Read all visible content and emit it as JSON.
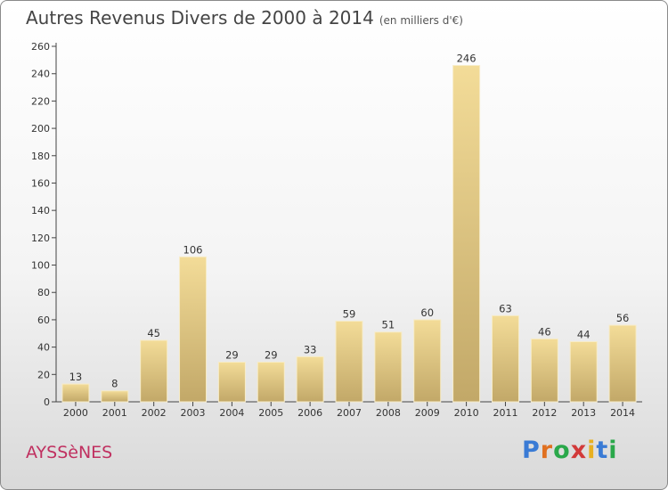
{
  "title": "Autres Revenus Divers de 2000 à 2014",
  "subtitle": "(en milliers d'€)",
  "commune": "AYSSèNES",
  "logo": {
    "text": "Proxiti",
    "letter_colors": [
      "#3a7bd5",
      "#e07020",
      "#2aa84a",
      "#d23a3a",
      "#e8b020",
      "#3a7bd5",
      "#2aa84a"
    ]
  },
  "colors": {
    "bar_top": "#f3dc98",
    "bar_bottom": "#c2a868",
    "commune": "#c03060"
  },
  "chart_data": {
    "type": "bar",
    "title": "Autres Revenus Divers de 2000 à 2014",
    "xlabel": "",
    "ylabel": "",
    "categories": [
      "2000",
      "2001",
      "2002",
      "2003",
      "2004",
      "2005",
      "2006",
      "2007",
      "2008",
      "2009",
      "2010",
      "2011",
      "2012",
      "2013",
      "2014"
    ],
    "values": [
      13,
      8,
      45,
      106,
      29,
      29,
      33,
      59,
      51,
      60,
      246,
      63,
      46,
      44,
      56
    ],
    "ylim": [
      0,
      260
    ],
    "yticks": [
      0,
      20,
      40,
      60,
      80,
      100,
      120,
      140,
      160,
      180,
      200,
      220,
      240,
      260
    ],
    "grid": false,
    "legend": "none"
  }
}
